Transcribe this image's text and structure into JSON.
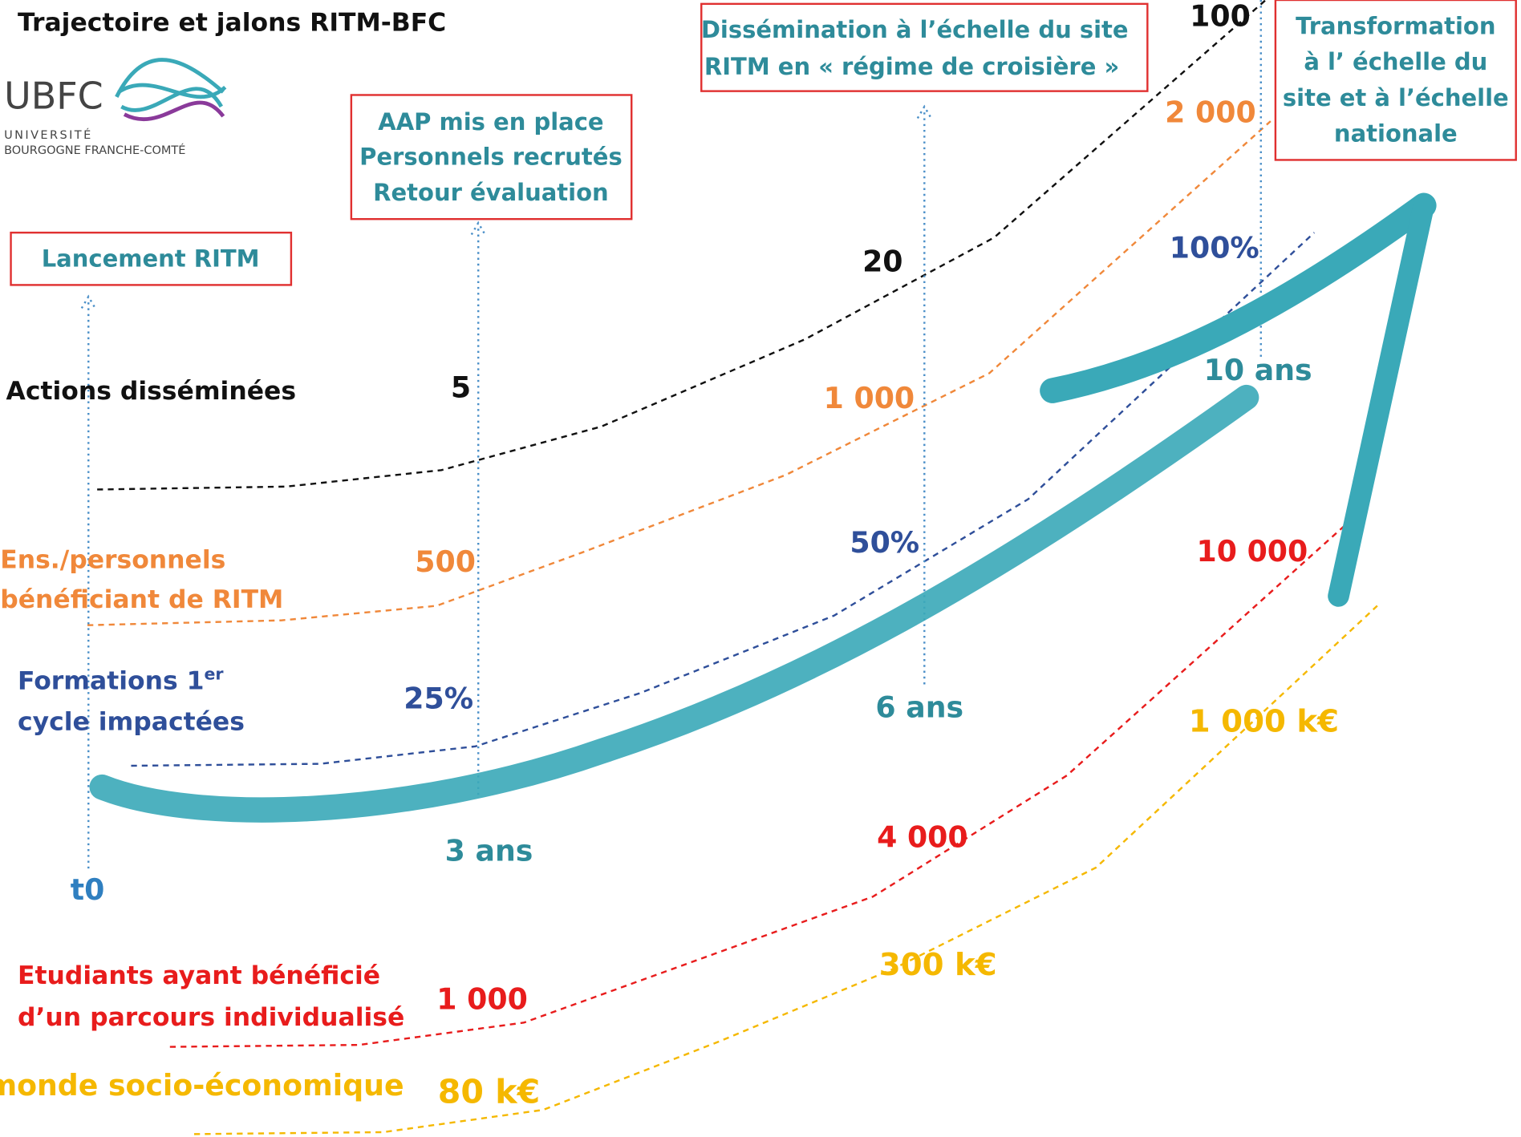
{
  "header": {
    "title": "Trajectoire et jalons RITM-BFC"
  },
  "logo": {
    "acronym": "UBFC",
    "line1": "UNIVERSITÉ",
    "line2": "BOURGOGNE FRANCHE-COMTÉ"
  },
  "milestones": [
    {
      "box": [
        "Lancement RITM"
      ],
      "time": "t0"
    },
    {
      "box": [
        "AAP mis en place",
        "Personnels recrutés",
        "Retour évaluation"
      ],
      "time": "3 ans"
    },
    {
      "box": [
        "Dissémination à l’échelle du site",
        "RITM en « régime de croisière »"
      ],
      "time": "6 ans"
    },
    {
      "box": [
        "Transformation",
        "à l’ échelle du",
        "site et à l’échelle",
        "nationale"
      ],
      "time": "10 ans"
    }
  ],
  "indicators": [
    {
      "label": [
        "Actions disséminées"
      ],
      "values": [
        "5",
        "20",
        "100"
      ]
    },
    {
      "label": [
        "Ens./personnels",
        "bénéficiant de RITM"
      ],
      "values": [
        "500",
        "1 000",
        "2 000"
      ]
    },
    {
      "label": [
        "Formations 1",
        "cycle impactées"
      ],
      "label_sup": "er",
      "values": [
        "25%",
        "50%",
        "100%"
      ]
    },
    {
      "label": [
        "Etudiants ayant bénéficié",
        "d’un parcours individualisé"
      ],
      "values": [
        "1 000",
        "4 000",
        "10 000"
      ]
    },
    {
      "label": [
        "monde socio-économique"
      ],
      "values": [
        "80 k€",
        "300 k€",
        "1 000 k€"
      ]
    }
  ]
}
